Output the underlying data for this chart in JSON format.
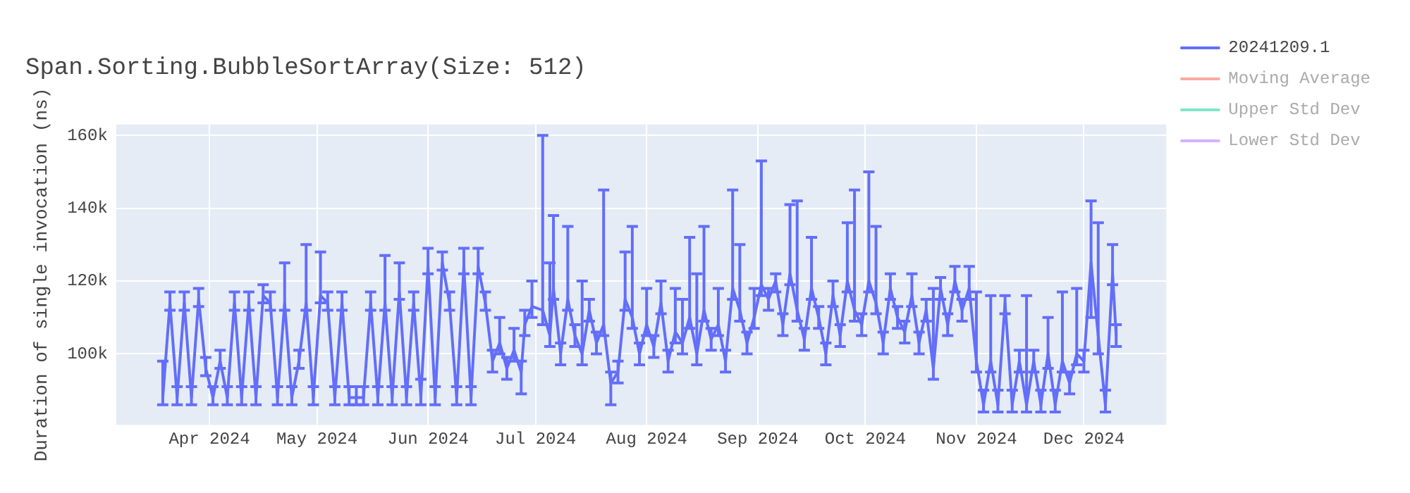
{
  "chart_data": {
    "type": "line",
    "title": "Span.Sorting.BubbleSortArray(Size: 512)",
    "ylabel": "Duration of single invocation (ns)",
    "xlim": [
      "2024-03-06",
      "2024-12-24"
    ],
    "xticks": [
      {
        "value": "2024-04-01",
        "label": "Apr 2024"
      },
      {
        "value": "2024-05-01",
        "label": "May 2024"
      },
      {
        "value": "2024-06-01",
        "label": "Jun 2024"
      },
      {
        "value": "2024-07-01",
        "label": "Jul 2024"
      },
      {
        "value": "2024-08-01",
        "label": "Aug 2024"
      },
      {
        "value": "2024-09-01",
        "label": "Sep 2024"
      },
      {
        "value": "2024-10-01",
        "label": "Oct 2024"
      },
      {
        "value": "2024-11-01",
        "label": "Nov 2024"
      },
      {
        "value": "2024-12-01",
        "label": "Dec 2024"
      }
    ],
    "ylim": [
      80500,
      163000
    ],
    "yticks": [
      {
        "value": 100000,
        "label": "100k"
      },
      {
        "value": 120000,
        "label": "120k"
      },
      {
        "value": 140000,
        "label": "140k"
      },
      {
        "value": 160000,
        "label": "160k"
      }
    ],
    "grid": true,
    "legend": "right",
    "marker": "none",
    "line_style": "solid",
    "x": [
      "2024-03-19",
      "2024-03-21",
      "2024-03-23",
      "2024-03-25",
      "2024-03-27",
      "2024-03-29",
      "2024-03-31",
      "2024-04-02",
      "2024-04-04",
      "2024-04-06",
      "2024-04-08",
      "2024-04-10",
      "2024-04-12",
      "2024-04-14",
      "2024-04-16",
      "2024-04-18",
      "2024-04-20",
      "2024-04-22",
      "2024-04-24",
      "2024-04-26",
      "2024-04-28",
      "2024-04-30",
      "2024-05-02",
      "2024-05-04",
      "2024-05-06",
      "2024-05-08",
      "2024-05-10",
      "2024-05-12",
      "2024-05-14",
      "2024-05-16",
      "2024-05-18",
      "2024-05-20",
      "2024-05-22",
      "2024-05-24",
      "2024-05-26",
      "2024-05-28",
      "2024-05-30",
      "2024-06-01",
      "2024-06-03",
      "2024-06-05",
      "2024-06-07",
      "2024-06-09",
      "2024-06-11",
      "2024-06-13",
      "2024-06-15",
      "2024-06-17",
      "2024-06-19",
      "2024-06-21",
      "2024-06-23",
      "2024-06-25",
      "2024-06-27",
      "2024-06-28",
      "2024-06-30",
      "2024-07-03",
      "2024-07-05",
      "2024-07-06",
      "2024-07-08",
      "2024-07-10",
      "2024-07-12",
      "2024-07-14",
      "2024-07-16",
      "2024-07-18",
      "2024-07-20",
      "2024-07-22",
      "2024-07-24",
      "2024-07-26",
      "2024-07-28",
      "2024-07-30",
      "2024-08-01",
      "2024-08-03",
      "2024-08-05",
      "2024-08-07",
      "2024-08-09",
      "2024-08-11",
      "2024-08-13",
      "2024-08-15",
      "2024-08-17",
      "2024-08-19",
      "2024-08-21",
      "2024-08-23",
      "2024-08-25",
      "2024-08-27",
      "2024-08-29",
      "2024-08-31",
      "2024-09-02",
      "2024-09-04",
      "2024-09-06",
      "2024-09-08",
      "2024-09-10",
      "2024-09-12",
      "2024-09-14",
      "2024-09-16",
      "2024-09-18",
      "2024-09-20",
      "2024-09-22",
      "2024-09-24",
      "2024-09-26",
      "2024-09-28",
      "2024-09-30",
      "2024-10-02",
      "2024-10-04",
      "2024-10-06",
      "2024-10-08",
      "2024-10-10",
      "2024-10-12",
      "2024-10-14",
      "2024-10-16",
      "2024-10-18",
      "2024-10-20",
      "2024-10-22",
      "2024-10-24",
      "2024-10-26",
      "2024-10-28",
      "2024-10-30",
      "2024-11-01",
      "2024-11-03",
      "2024-11-05",
      "2024-11-07",
      "2024-11-09",
      "2024-11-11",
      "2024-11-13",
      "2024-11-15",
      "2024-11-17",
      "2024-11-19",
      "2024-11-21",
      "2024-11-23",
      "2024-11-25",
      "2024-11-27",
      "2024-11-29",
      "2024-12-01",
      "2024-12-03",
      "2024-12-05",
      "2024-12-07",
      "2024-12-09",
      "2024-12-10"
    ],
    "series": [
      {
        "name": "20241209.1",
        "color": "#636efa",
        "values": [
          88000,
          114000,
          88000,
          114000,
          88000,
          115000,
          96000,
          88000,
          98000,
          88000,
          114000,
          88000,
          114000,
          88000,
          116000,
          114000,
          88000,
          114000,
          88000,
          98000,
          114000,
          88000,
          116000,
          114000,
          88000,
          114000,
          88000,
          88000,
          88000,
          114000,
          88000,
          114000,
          88000,
          117000,
          88000,
          114000,
          88000,
          124000,
          88000,
          125000,
          114000,
          88000,
          124000,
          88000,
          124000,
          114000,
          98000,
          103000,
          96000,
          101000,
          95000,
          108000,
          113000,
          112000,
          105000,
          118000,
          100000,
          115000,
          105000,
          100000,
          112000,
          103000,
          108000,
          92000,
          95000,
          115000,
          110000,
          100000,
          108000,
          102000,
          114000,
          98000,
          106000,
          103000,
          110000,
          100000,
          112000,
          104000,
          108000,
          98000,
          118000,
          112000,
          103000,
          110000,
          119000,
          115000,
          120000,
          108000,
          122000,
          112000,
          104000,
          118000,
          110000,
          100000,
          116000,
          105000,
          120000,
          112000,
          108000,
          120000,
          114000,
          103000,
          118000,
          110000,
          106000,
          116000,
          103000,
          112000,
          96000,
          118000,
          108000,
          120000,
          112000,
          118000,
          98000,
          86000,
          98000,
          86000,
          114000,
          86000,
          98000,
          86000,
          98000,
          86000,
          100000,
          86000,
          98000,
          92000,
          100000,
          98000,
          125000,
          105000,
          86000,
          122000,
          105000
        ],
        "errors": [
          [
            86000,
            98000
          ],
          [
            112000,
            117000
          ],
          [
            86000,
            91000
          ],
          [
            112000,
            117000
          ],
          [
            86000,
            91000
          ],
          [
            113000,
            118000
          ],
          [
            94000,
            99000
          ],
          [
            86000,
            91000
          ],
          [
            96000,
            101000
          ],
          [
            86000,
            91000
          ],
          [
            112000,
            117000
          ],
          [
            86000,
            91000
          ],
          [
            112000,
            117000
          ],
          [
            86000,
            91000
          ],
          [
            114000,
            119000
          ],
          [
            112000,
            117000
          ],
          [
            86000,
            91000
          ],
          [
            112000,
            125000
          ],
          [
            86000,
            91000
          ],
          [
            96000,
            101000
          ],
          [
            112000,
            130000
          ],
          [
            86000,
            91000
          ],
          [
            114000,
            128000
          ],
          [
            112000,
            117000
          ],
          [
            86000,
            91000
          ],
          [
            112000,
            117000
          ],
          [
            86000,
            91000
          ],
          [
            86000,
            91000
          ],
          [
            86000,
            91000
          ],
          [
            112000,
            117000
          ],
          [
            86000,
            91000
          ],
          [
            112000,
            127000
          ],
          [
            86000,
            91000
          ],
          [
            115000,
            125000
          ],
          [
            86000,
            91000
          ],
          [
            112000,
            117000
          ],
          [
            86000,
            93000
          ],
          [
            122000,
            129000
          ],
          [
            86000,
            91000
          ],
          [
            123000,
            128000
          ],
          [
            112000,
            117000
          ],
          [
            86000,
            91000
          ],
          [
            122000,
            129000
          ],
          [
            86000,
            91000
          ],
          [
            122000,
            129000
          ],
          [
            112000,
            117000
          ],
          [
            95000,
            101000
          ],
          [
            100000,
            110000
          ],
          [
            93000,
            99000
          ],
          [
            98000,
            107000
          ],
          [
            89000,
            98000
          ],
          [
            105000,
            112000
          ],
          [
            110000,
            120000
          ],
          [
            108000,
            160000
          ],
          [
            102000,
            125000
          ],
          [
            115000,
            138000
          ],
          [
            97000,
            103000
          ],
          [
            112000,
            135000
          ],
          [
            102000,
            108000
          ],
          [
            97000,
            120000
          ],
          [
            109000,
            115000
          ],
          [
            100000,
            106000
          ],
          [
            105000,
            145000
          ],
          [
            86000,
            95000
          ],
          [
            92000,
            98000
          ],
          [
            112000,
            128000
          ],
          [
            107000,
            135000
          ],
          [
            97000,
            103000
          ],
          [
            105000,
            118000
          ],
          [
            99000,
            105000
          ],
          [
            111000,
            120000
          ],
          [
            95000,
            101000
          ],
          [
            103000,
            118000
          ],
          [
            100000,
            115000
          ],
          [
            107000,
            132000
          ],
          [
            97000,
            122000
          ],
          [
            109000,
            135000
          ],
          [
            101000,
            107000
          ],
          [
            105000,
            118000
          ],
          [
            95000,
            101000
          ],
          [
            115000,
            145000
          ],
          [
            109000,
            130000
          ],
          [
            100000,
            106000
          ],
          [
            107000,
            118000
          ],
          [
            116000,
            153000
          ],
          [
            112000,
            118000
          ],
          [
            117000,
            122000
          ],
          [
            105000,
            111000
          ],
          [
            119000,
            141000
          ],
          [
            109000,
            142000
          ],
          [
            101000,
            107000
          ],
          [
            115000,
            132000
          ],
          [
            107000,
            113000
          ],
          [
            97000,
            103000
          ],
          [
            113000,
            120000
          ],
          [
            102000,
            108000
          ],
          [
            117000,
            136000
          ],
          [
            109000,
            145000
          ],
          [
            105000,
            111000
          ],
          [
            117000,
            150000
          ],
          [
            111000,
            135000
          ],
          [
            100000,
            106000
          ],
          [
            115000,
            122000
          ],
          [
            107000,
            113000
          ],
          [
            103000,
            109000
          ],
          [
            113000,
            122000
          ],
          [
            100000,
            106000
          ],
          [
            109000,
            115000
          ],
          [
            93000,
            118000
          ],
          [
            115000,
            121000
          ],
          [
            105000,
            111000
          ],
          [
            117000,
            124000
          ],
          [
            109000,
            115000
          ],
          [
            115000,
            124000
          ],
          [
            95000,
            117000
          ],
          [
            84000,
            90000
          ],
          [
            95000,
            116000
          ],
          [
            84000,
            90000
          ],
          [
            111000,
            116000
          ],
          [
            84000,
            90000
          ],
          [
            95000,
            101000
          ],
          [
            84000,
            116000
          ],
          [
            95000,
            101000
          ],
          [
            84000,
            90000
          ],
          [
            96000,
            110000
          ],
          [
            84000,
            90000
          ],
          [
            95000,
            117000
          ],
          [
            89000,
            95000
          ],
          [
            97000,
            118000
          ],
          [
            95000,
            101000
          ],
          [
            110000,
            142000
          ],
          [
            100000,
            136000
          ],
          [
            84000,
            90000
          ],
          [
            119000,
            130000
          ],
          [
            102000,
            108000
          ]
        ]
      },
      {
        "name": "Moving Average",
        "color": "#ef553b",
        "values": [
          null,
          null,
          null,
          null,
          null,
          null,
          null,
          null,
          null,
          null,
          null,
          null,
          null,
          null,
          null,
          null,
          null,
          null,
          null,
          null,
          null,
          null,
          null,
          null,
          null,
          null,
          null,
          null,
          null,
          null,
          null,
          null,
          null,
          null,
          null,
          null,
          null,
          null,
          null,
          null,
          null,
          null,
          null,
          null,
          null,
          null,
          null,
          null,
          null,
          null,
          null,
          null,
          null,
          null,
          null,
          null,
          null,
          null,
          null,
          null,
          null,
          null,
          null,
          null,
          null,
          null,
          null,
          null,
          null,
          null,
          null,
          null,
          null,
          null,
          null,
          null,
          null,
          null,
          null,
          null,
          null,
          null,
          null,
          null,
          null,
          null,
          null,
          null,
          null,
          null,
          null,
          null,
          null,
          null,
          null,
          null,
          null,
          null,
          null,
          null,
          null,
          null,
          null,
          null,
          null,
          null,
          null,
          null,
          null,
          null,
          null,
          null,
          null,
          null,
          null,
          null,
          null,
          null,
          null,
          null,
          null,
          null,
          null,
          null,
          null,
          null,
          null,
          null,
          null,
          null,
          null,
          null,
          null,
          null,
          null
        ]
      },
      {
        "name": "Upper Std Dev",
        "color": "#00cc96",
        "values": [
          null,
          null,
          null,
          null,
          null,
          null,
          null,
          null,
          null,
          null,
          null,
          null,
          null,
          null,
          null,
          null,
          null,
          null,
          null,
          null,
          null,
          null,
          null,
          null,
          null,
          null,
          null,
          null,
          null,
          null,
          null,
          null,
          null,
          null,
          null,
          null,
          null,
          null,
          null,
          null,
          null,
          null,
          null,
          null,
          null,
          null,
          null,
          null,
          null,
          null,
          null,
          null,
          null,
          null,
          null,
          null,
          null,
          null,
          null,
          null,
          null,
          null,
          null,
          null,
          null,
          null,
          null,
          null,
          null,
          null,
          null,
          null,
          null,
          null,
          null,
          null,
          null,
          null,
          null,
          null,
          null,
          null,
          null,
          null,
          null,
          null,
          null,
          null,
          null,
          null,
          null,
          null,
          null,
          null,
          null,
          null,
          null,
          null,
          null,
          null,
          null,
          null,
          null,
          null,
          null,
          null,
          null,
          null,
          null,
          null,
          null,
          null,
          null,
          null,
          null,
          null,
          null,
          null,
          null,
          null,
          null,
          null,
          null,
          null,
          null,
          null,
          null,
          null,
          null,
          null,
          null,
          null,
          null,
          null,
          null
        ]
      },
      {
        "name": "Lower Std Dev",
        "color": "#ab63fa",
        "values": [
          null,
          null,
          null,
          null,
          null,
          null,
          null,
          null,
          null,
          null,
          null,
          null,
          null,
          null,
          null,
          null,
          null,
          null,
          null,
          null,
          null,
          null,
          null,
          null,
          null,
          null,
          null,
          null,
          null,
          null,
          null,
          null,
          null,
          null,
          null,
          null,
          null,
          null,
          null,
          null,
          null,
          null,
          null,
          null,
          null,
          null,
          null,
          null,
          null,
          null,
          null,
          null,
          null,
          null,
          null,
          null,
          null,
          null,
          null,
          null,
          null,
          null,
          null,
          null,
          null,
          null,
          null,
          null,
          null,
          null,
          null,
          null,
          null,
          null,
          null,
          null,
          null,
          null,
          null,
          null,
          null,
          null,
          null,
          null,
          null,
          null,
          null,
          null,
          null,
          null,
          null,
          null,
          null,
          null,
          null,
          null,
          null,
          null,
          null,
          null,
          null,
          null,
          null,
          null,
          null,
          null,
          null,
          null,
          null,
          null,
          null,
          null,
          null,
          null,
          null,
          null,
          null,
          null,
          null,
          null,
          null,
          null,
          null,
          null,
          null,
          null,
          null,
          null,
          null,
          null,
          null,
          null,
          null,
          null,
          null
        ]
      }
    ]
  }
}
